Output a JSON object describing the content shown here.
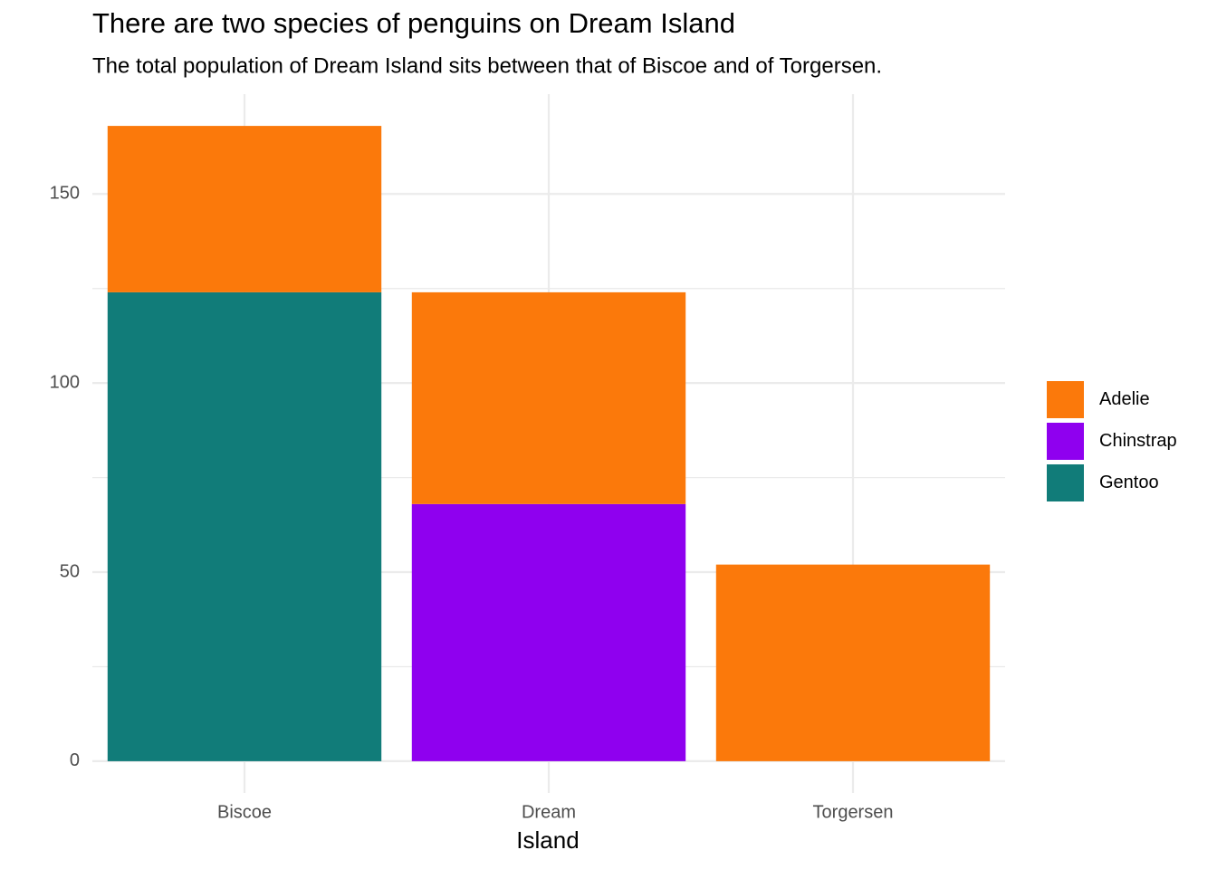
{
  "chart_data": {
    "type": "stacked_bar",
    "title": "There are two species of penguins on Dream Island",
    "subtitle": "The total population of Dream Island sits between that of Biscoe and of Torgersen.",
    "x_label": "Island",
    "categories": [
      "Biscoe",
      "Dream",
      "Torgersen"
    ],
    "series": [
      {
        "name": "Adelie",
        "color": "#fb790b",
        "values": [
          44,
          56,
          52
        ]
      },
      {
        "name": "Chinstrap",
        "color": "#8f00ef",
        "values": [
          0,
          68,
          0
        ]
      },
      {
        "name": "Gentoo",
        "color": "#117c79",
        "values": [
          124,
          0,
          0
        ]
      }
    ],
    "ylim": [
      -8.4,
      176.4
    ],
    "yticks": [
      0,
      50,
      100,
      150
    ],
    "grid": true,
    "legend": "right"
  }
}
